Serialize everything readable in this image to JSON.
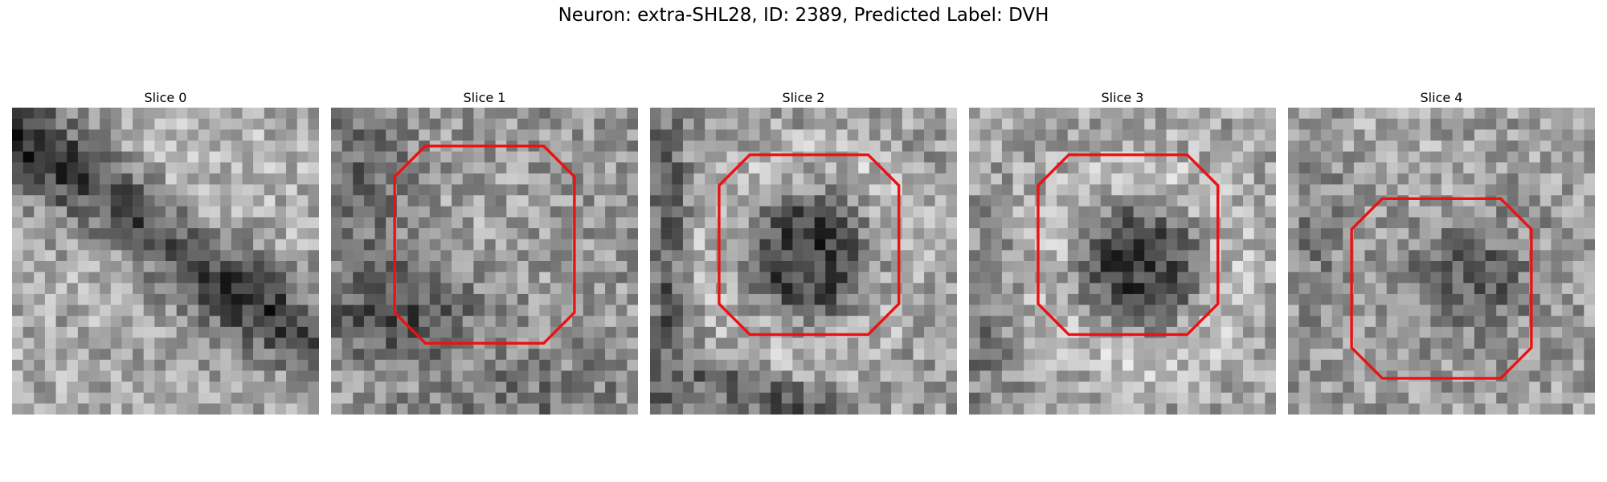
{
  "figure": {
    "title": "Neuron: extra-SHL28, ID: 2389, Predicted Label: DVH",
    "contour_color": "#ee1111",
    "colormap": "grayscale",
    "panels": [
      {
        "title": "Slice 0",
        "has_contour": false
      },
      {
        "title": "Slice 1",
        "has_contour": true
      },
      {
        "title": "Slice 2",
        "has_contour": true
      },
      {
        "title": "Slice 3",
        "has_contour": true
      },
      {
        "title": "Slice 4",
        "has_contour": true
      }
    ]
  }
}
